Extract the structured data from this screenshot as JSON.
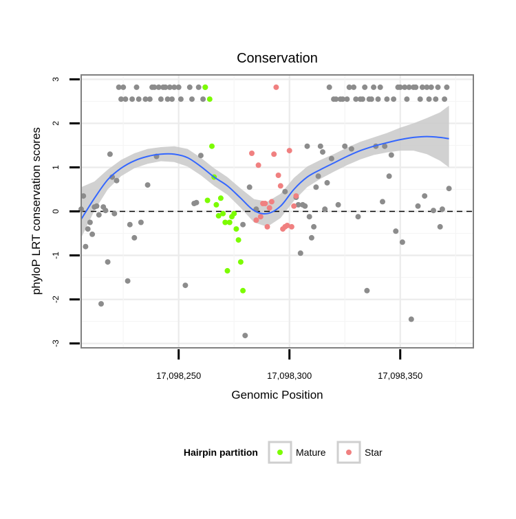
{
  "chart_data": {
    "type": "scatter",
    "title": "Conservation",
    "xlabel": "Genomic Position",
    "ylabel": "phyloP LRT conservation scores",
    "xlim": [
      17098206,
      17098383
    ],
    "ylim": [
      -3.1,
      3.1
    ],
    "xticks": [
      17098250,
      17098300,
      17098350
    ],
    "xtick_labels": [
      "17,098,250",
      "17,098,300",
      "17,098,350"
    ],
    "yticks": [
      -3,
      -2,
      -1,
      0,
      1,
      2,
      3
    ],
    "ytick_labels": [
      "-3",
      "-2",
      "-1",
      "0",
      "1",
      "2",
      "3"
    ],
    "reference_line": {
      "y": 0,
      "style": "dashed"
    },
    "grid": true,
    "legend": {
      "title": "Hairpin partition",
      "position": "bottom",
      "entries": [
        {
          "label": "Mature",
          "color": "#7cfc00"
        },
        {
          "label": "Star",
          "color": "#f08080"
        }
      ]
    },
    "colors": {
      "other": "#8c8c8c",
      "Mature": "#7cfc00",
      "Star": "#f08080",
      "smooth": "#3366ff",
      "band": "#c9c9c9"
    },
    "series": [
      {
        "group": "other",
        "points": [
          [
            17098206,
            0.05
          ],
          [
            17098207,
            0.35
          ],
          [
            17098208,
            -0.8
          ],
          [
            17098209,
            -0.4
          ],
          [
            17098210,
            -0.25
          ],
          [
            17098211,
            -0.52
          ],
          [
            17098212,
            0.1
          ],
          [
            17098213,
            0.12
          ],
          [
            17098214,
            -0.08
          ],
          [
            17098215,
            -2.1
          ],
          [
            17098216,
            0.1
          ],
          [
            17098217,
            0.02
          ],
          [
            17098218,
            -1.15
          ],
          [
            17098219,
            1.3
          ],
          [
            17098220,
            0.78
          ],
          [
            17098221,
            -0.05
          ],
          [
            17098222,
            0.7
          ],
          [
            17098223,
            2.82
          ],
          [
            17098224,
            2.55
          ],
          [
            17098225,
            2.82
          ],
          [
            17098226,
            2.55
          ],
          [
            17098227,
            -1.58
          ],
          [
            17098228,
            -0.3
          ],
          [
            17098229,
            2.55
          ],
          [
            17098230,
            -0.6
          ],
          [
            17098231,
            2.82
          ],
          [
            17098232,
            2.55
          ],
          [
            17098233,
            -0.25
          ],
          [
            17098235,
            2.55
          ],
          [
            17098236,
            0.6
          ],
          [
            17098237,
            2.55
          ],
          [
            17098238,
            2.82
          ],
          [
            17098239,
            2.82
          ],
          [
            17098240,
            1.25
          ],
          [
            17098241,
            2.82
          ],
          [
            17098242,
            2.55
          ],
          [
            17098243,
            2.82
          ],
          [
            17098244,
            2.82
          ],
          [
            17098245,
            2.55
          ],
          [
            17098246,
            2.82
          ],
          [
            17098247,
            2.55
          ],
          [
            17098248,
            2.82
          ],
          [
            17098250,
            2.82
          ],
          [
            17098251,
            2.55
          ],
          [
            17098253,
            -1.68
          ],
          [
            17098255,
            2.82
          ],
          [
            17098256,
            2.55
          ],
          [
            17098257,
            0.18
          ],
          [
            17098258,
            0.2
          ],
          [
            17098259,
            2.82
          ],
          [
            17098260,
            1.27
          ],
          [
            17098261,
            2.55
          ],
          [
            17098262,
            2.82
          ],
          [
            17098279,
            -0.3
          ],
          [
            17098280,
            -2.82
          ],
          [
            17098282,
            0.55
          ],
          [
            17098285,
            0.05
          ],
          [
            17098298,
            0.45
          ],
          [
            17098303,
            0.32
          ],
          [
            17098304,
            0.15
          ],
          [
            17098305,
            -0.95
          ],
          [
            17098306,
            0.15
          ],
          [
            17098307,
            0.12
          ],
          [
            17098308,
            1.48
          ],
          [
            17098309,
            -0.12
          ],
          [
            17098310,
            -0.6
          ],
          [
            17098311,
            -0.35
          ],
          [
            17098312,
            0.55
          ],
          [
            17098313,
            0.8
          ],
          [
            17098314,
            1.48
          ],
          [
            17098315,
            1.35
          ],
          [
            17098316,
            0.05
          ],
          [
            17098317,
            0.65
          ],
          [
            17098318,
            2.82
          ],
          [
            17098319,
            1.2
          ],
          [
            17098320,
            2.55
          ],
          [
            17098321,
            2.55
          ],
          [
            17098322,
            0.15
          ],
          [
            17098323,
            2.55
          ],
          [
            17098324,
            2.55
          ],
          [
            17098325,
            1.48
          ],
          [
            17098326,
            2.55
          ],
          [
            17098327,
            2.82
          ],
          [
            17098328,
            1.42
          ],
          [
            17098329,
            2.82
          ],
          [
            17098330,
            2.55
          ],
          [
            17098331,
            -0.12
          ],
          [
            17098332,
            2.55
          ],
          [
            17098333,
            2.55
          ],
          [
            17098334,
            2.82
          ],
          [
            17098335,
            -1.8
          ],
          [
            17098336,
            2.55
          ],
          [
            17098337,
            2.55
          ],
          [
            17098338,
            2.82
          ],
          [
            17098339,
            1.48
          ],
          [
            17098340,
            2.55
          ],
          [
            17098341,
            2.82
          ],
          [
            17098342,
            0.22
          ],
          [
            17098343,
            1.48
          ],
          [
            17098344,
            2.55
          ],
          [
            17098345,
            0.8
          ],
          [
            17098346,
            1.28
          ],
          [
            17098347,
            2.55
          ],
          [
            17098348,
            -0.45
          ],
          [
            17098349,
            2.82
          ],
          [
            17098350,
            2.82
          ],
          [
            17098351,
            -0.7
          ],
          [
            17098352,
            2.82
          ],
          [
            17098353,
            2.55
          ],
          [
            17098354,
            2.82
          ],
          [
            17098355,
            -2.45
          ],
          [
            17098356,
            2.82
          ],
          [
            17098357,
            2.82
          ],
          [
            17098358,
            0.12
          ],
          [
            17098359,
            2.55
          ],
          [
            17098360,
            2.82
          ],
          [
            17098361,
            0.35
          ],
          [
            17098362,
            2.82
          ],
          [
            17098363,
            2.55
          ],
          [
            17098364,
            2.82
          ],
          [
            17098365,
            0.02
          ],
          [
            17098366,
            2.55
          ],
          [
            17098367,
            2.82
          ],
          [
            17098368,
            -0.35
          ],
          [
            17098369,
            0.05
          ],
          [
            17098370,
            2.55
          ],
          [
            17098371,
            2.82
          ],
          [
            17098372,
            0.52
          ]
        ]
      },
      {
        "group": "Mature",
        "points": [
          [
            17098262,
            2.82
          ],
          [
            17098263,
            0.25
          ],
          [
            17098264,
            2.55
          ],
          [
            17098265,
            1.48
          ],
          [
            17098266,
            0.78
          ],
          [
            17098267,
            0.15
          ],
          [
            17098268,
            -0.1
          ],
          [
            17098269,
            0.3
          ],
          [
            17098270,
            -0.05
          ],
          [
            17098271,
            -0.25
          ],
          [
            17098272,
            -1.35
          ],
          [
            17098273,
            -0.25
          ],
          [
            17098274,
            -0.12
          ],
          [
            17098275,
            -0.05
          ],
          [
            17098276,
            -0.4
          ],
          [
            17098277,
            -0.65
          ],
          [
            17098278,
            -1.15
          ],
          [
            17098279,
            -1.8
          ]
        ]
      },
      {
        "group": "Star",
        "points": [
          [
            17098283,
            1.32
          ],
          [
            17098285,
            -0.2
          ],
          [
            17098286,
            1.05
          ],
          [
            17098287,
            -0.12
          ],
          [
            17098288,
            0.18
          ],
          [
            17098289,
            0.18
          ],
          [
            17098290,
            -0.35
          ],
          [
            17098291,
            0.08
          ],
          [
            17098292,
            0.22
          ],
          [
            17098293,
            1.3
          ],
          [
            17098294,
            2.82
          ],
          [
            17098295,
            0.82
          ],
          [
            17098296,
            0.58
          ],
          [
            17098297,
            -0.4
          ],
          [
            17098298,
            -0.35
          ],
          [
            17098299,
            -0.32
          ],
          [
            17098300,
            1.38
          ],
          [
            17098301,
            -0.35
          ],
          [
            17098302,
            0.12
          ],
          [
            17098303,
            0.35
          ]
        ]
      }
    ],
    "smooth": {
      "x": [
        17098206,
        17098212,
        17098218,
        17098224,
        17098230,
        17098236,
        17098242,
        17098248,
        17098254,
        17098260,
        17098266,
        17098272,
        17098278,
        17098284,
        17098290,
        17098296,
        17098302,
        17098308,
        17098314,
        17098320,
        17098326,
        17098332,
        17098338,
        17098344,
        17098350,
        17098356,
        17098362,
        17098368,
        17098372
      ],
      "y": [
        -0.18,
        0.3,
        0.72,
        0.98,
        1.15,
        1.25,
        1.3,
        1.3,
        1.22,
        1.02,
        0.78,
        0.58,
        0.3,
        0.02,
        -0.05,
        0.12,
        0.5,
        0.78,
        0.95,
        1.1,
        1.25,
        1.38,
        1.48,
        1.56,
        1.63,
        1.68,
        1.7,
        1.68,
        1.65
      ],
      "lower": [
        -0.6,
        0.02,
        0.5,
        0.8,
        0.98,
        1.08,
        1.14,
        1.12,
        1.02,
        0.82,
        0.58,
        0.38,
        0.08,
        -0.25,
        -0.35,
        -0.15,
        0.24,
        0.55,
        0.74,
        0.9,
        1.05,
        1.18,
        1.28,
        1.34,
        1.38,
        1.38,
        1.3,
        1.15,
        1.0
      ],
      "upper": [
        0.55,
        0.68,
        0.95,
        1.17,
        1.32,
        1.42,
        1.46,
        1.48,
        1.42,
        1.22,
        0.98,
        0.78,
        0.52,
        0.28,
        0.22,
        0.4,
        0.76,
        1.02,
        1.17,
        1.3,
        1.45,
        1.58,
        1.68,
        1.78,
        1.9,
        2.0,
        2.12,
        2.25,
        2.4
      ]
    }
  }
}
